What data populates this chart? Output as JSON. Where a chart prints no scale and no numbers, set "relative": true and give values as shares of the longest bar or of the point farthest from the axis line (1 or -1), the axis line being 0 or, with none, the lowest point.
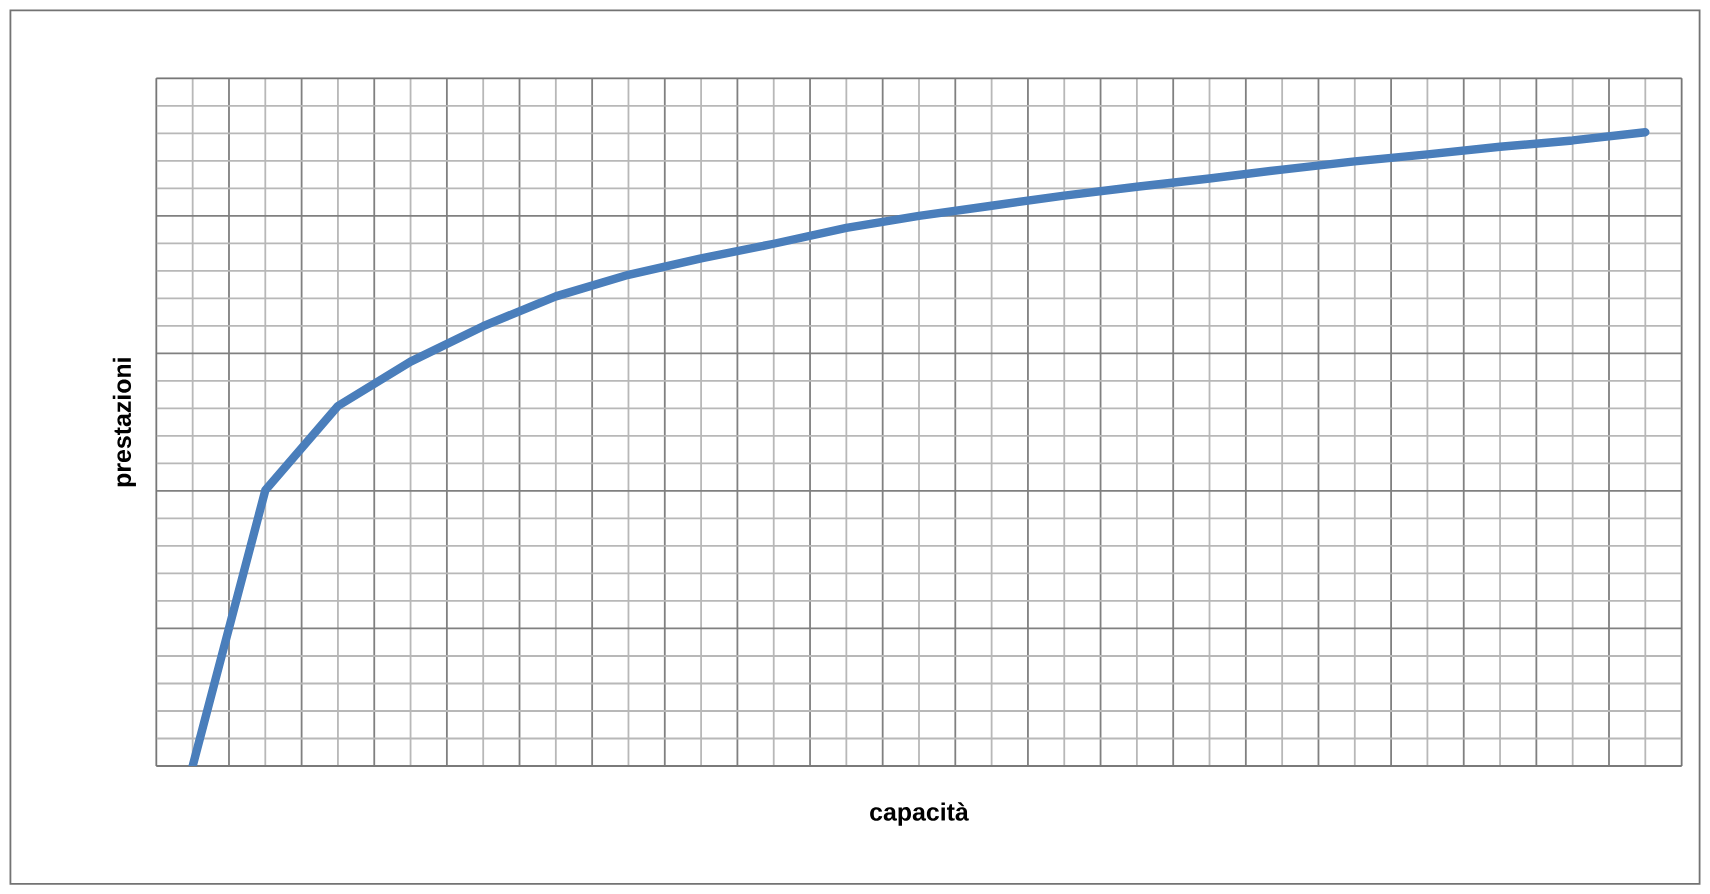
{
  "chart_data": {
    "type": "line",
    "xlabel": "capacità",
    "ylabel": "prestazioni",
    "relative": true,
    "grid": true,
    "line_style": "solid",
    "categories": [
      null,
      null,
      null,
      null,
      null,
      null,
      null,
      null,
      null,
      null,
      null,
      null,
      null,
      null,
      null,
      null,
      null,
      null,
      null,
      null,
      null
    ],
    "series": [
      {
        "color": "#4a7ebb",
        "values": [
          0,
          0.435,
          0.568,
          0.638,
          0.694,
          0.741,
          0.775,
          0.801,
          0.824,
          0.849,
          0.868,
          0.884,
          0.9,
          0.914,
          0.927,
          0.941,
          0.954,
          0.965,
          0.977,
          0.987,
          1
        ]
      }
    ]
  }
}
